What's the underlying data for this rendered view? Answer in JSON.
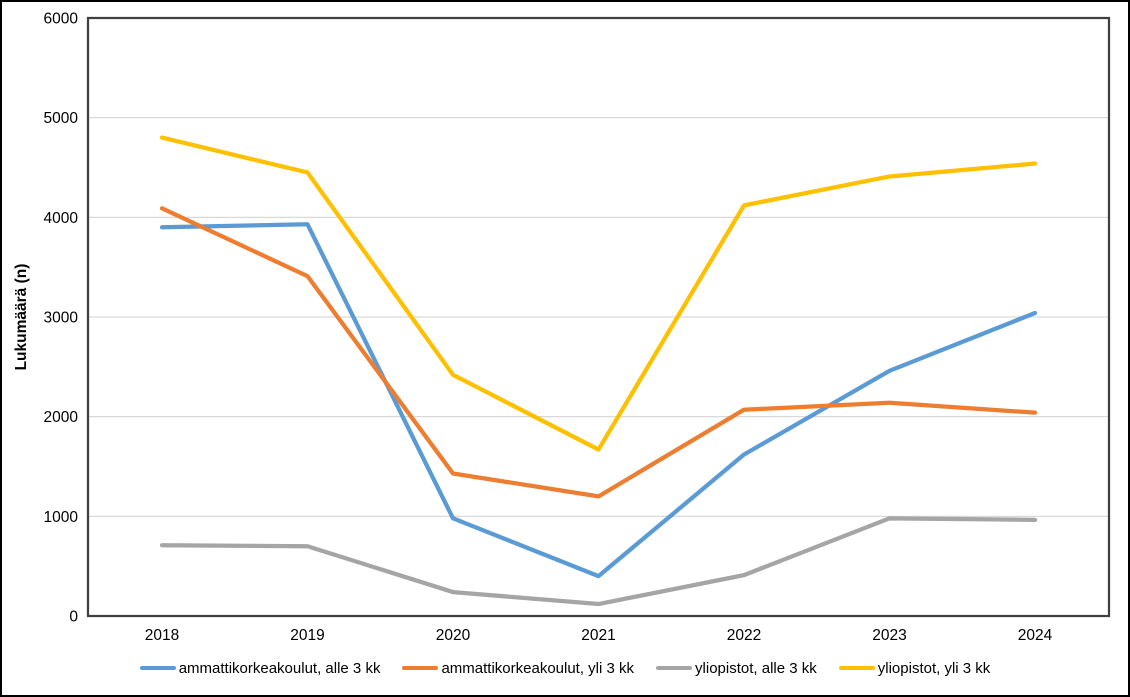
{
  "chart_data": {
    "type": "line",
    "x": [
      "2018",
      "2019",
      "2020",
      "2021",
      "2022",
      "2023",
      "2024"
    ],
    "series": [
      {
        "name": "ammattikorkeakoulut, alle 3 kk",
        "color": "#5B9BD5",
        "values": [
          3900,
          3930,
          980,
          400,
          1620,
          2460,
          3040
        ]
      },
      {
        "name": "ammattikorkeakoulut, yli 3 kk",
        "color": "#ED7D31",
        "values": [
          4090,
          3410,
          1430,
          1200,
          2070,
          2140,
          2040
        ]
      },
      {
        "name": "yliopistot, alle 3 kk",
        "color": "#A5A5A5",
        "values": [
          710,
          700,
          240,
          120,
          410,
          980,
          965
        ]
      },
      {
        "name": "yliopistot, yli 3 kk",
        "color": "#FFC000",
        "values": [
          4800,
          4450,
          2420,
          1670,
          4120,
          4410,
          4540
        ]
      }
    ],
    "title": "",
    "xlabel": "",
    "ylabel": "Lukumäärä (n)",
    "ylim": [
      0,
      6000
    ],
    "y_ticks": [
      0,
      1000,
      2000,
      3000,
      4000,
      5000,
      6000
    ],
    "grid": true,
    "legend_position": "bottom"
  },
  "style": {
    "grid_color": "#D9D9D9",
    "plot_border_color": "#404040",
    "frame_color": "#000000",
    "text_color": "#000000",
    "line_width": 4.25
  }
}
